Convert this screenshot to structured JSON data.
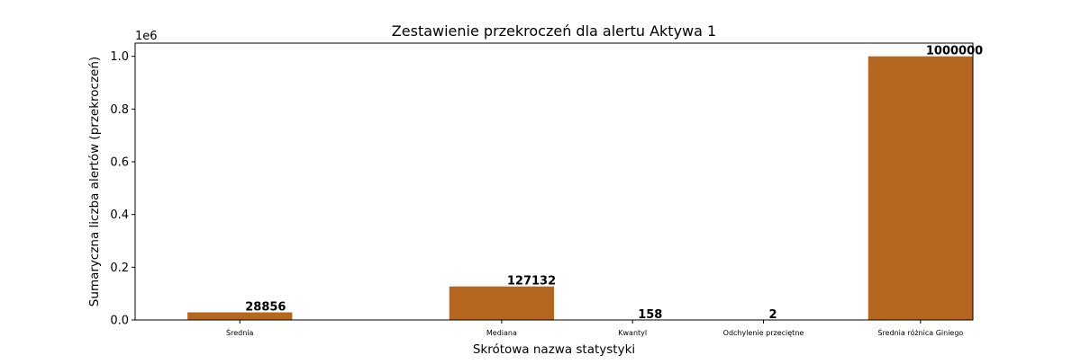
{
  "chart_data": {
    "type": "bar",
    "title": "Zestawienie przekroczeń dla alertu Aktywa 1",
    "xlabel": "Skrótowa nazwa statystyki",
    "ylabel": "Sumaryczna liczba alertów (przekroczeń)",
    "y_offset_text": "1e6",
    "categories": [
      "Średnia",
      "Mediana",
      "Kwantyl",
      "Odchylenie przeciętne",
      "Średnia różnica Giniego"
    ],
    "x": [
      1,
      3.5,
      4.75,
      6,
      7.5
    ],
    "xlim": [
      0.0,
      8.0
    ],
    "values": [
      28856,
      127132,
      158,
      2,
      1000000
    ],
    "data_labels": [
      "28856",
      "127132",
      "158",
      "2",
      "1000000"
    ],
    "ylim": [
      0,
      1050000
    ],
    "yticks": [
      0,
      200000,
      400000,
      600000,
      800000,
      1000000
    ],
    "ytick_labels": [
      "0.0",
      "0.2",
      "0.4",
      "0.6",
      "0.8",
      "1.0"
    ],
    "bar_color": "#b5661f",
    "grid": false,
    "legend": "none"
  }
}
